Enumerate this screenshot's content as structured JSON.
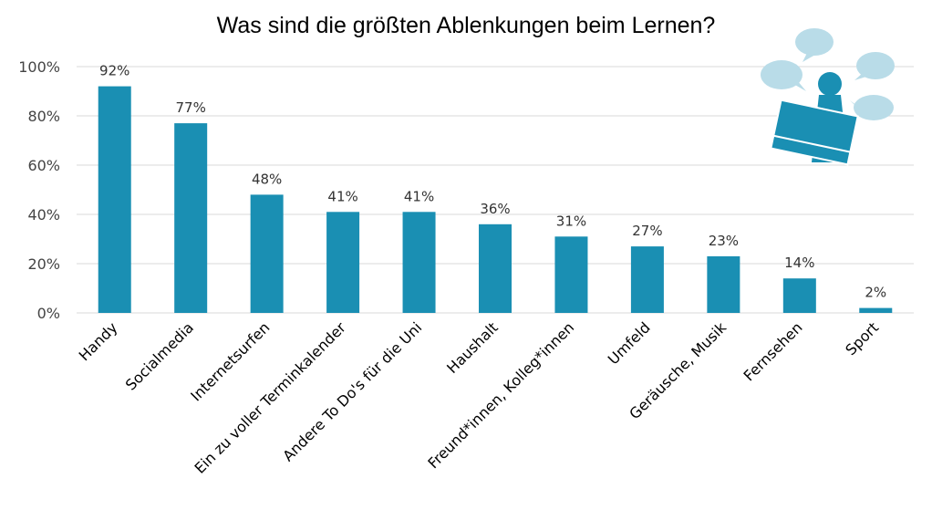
{
  "chart_data": {
    "type": "bar",
    "title": "Was sind die größten Ablenkungen beim Lernen?",
    "categories": [
      "Handy",
      "Socialmedia",
      "Internetsurfen",
      "Ein zu voller Terminkalender",
      "Andere To Do's für die Uni",
      "Haushalt",
      "Freund*innen, Kolleg*innen",
      "Umfeld",
      "Geräusche, Musik",
      "Fernsehen",
      "Sport"
    ],
    "values": [
      92,
      77,
      48,
      41,
      41,
      36,
      31,
      27,
      23,
      14,
      2
    ],
    "value_labels": [
      "92%",
      "77%",
      "48%",
      "41%",
      "41%",
      "36%",
      "31%",
      "27%",
      "23%",
      "14%",
      "2%"
    ],
    "ylim": [
      0,
      100
    ],
    "yticks": [
      0,
      20,
      40,
      60,
      80,
      100
    ],
    "ytick_labels": [
      "0%",
      "20%",
      "40%",
      "60%",
      "80%",
      "100%"
    ],
    "grid": true,
    "bar_color": "#1a8fb3",
    "grid_color": "#d9d9d9"
  },
  "illustration": {
    "icon": "person-reading-with-speech-bubbles-icon",
    "bubble_color": "#b9dce8",
    "figure_color": "#1a8fb3"
  }
}
